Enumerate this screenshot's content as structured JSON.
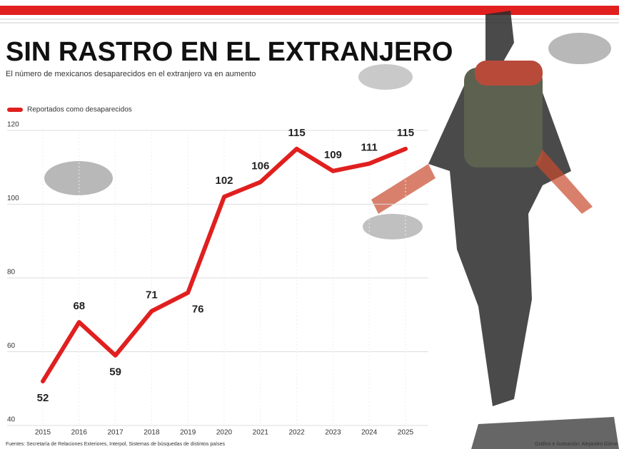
{
  "chart_data": {
    "type": "line",
    "title": "SIN RASTRO EN EL EXTRANJERO",
    "subtitle": "El número de mexicanos desaparecidos en el extranjero va en aumento",
    "categories": [
      "2015",
      "2016",
      "2017",
      "2018",
      "2019",
      "2020",
      "2021",
      "2022",
      "2023",
      "2024",
      "2025"
    ],
    "series": [
      {
        "name": "Reportados como desaparecidos",
        "color": "#e0201f",
        "values": [
          52,
          68,
          59,
          71,
          76,
          102,
          106,
          115,
          109,
          111,
          115
        ]
      }
    ],
    "ylim": [
      40,
      120
    ],
    "yticks": [
      40,
      60,
      80,
      100,
      120
    ],
    "grid": true,
    "source": "Fuentes: Secretaría de Relaciones Exteriores, Interpol, Sistemas de búsquedas de distintos países",
    "credit": "Gráfico e ilustración: Alejandro Góme"
  }
}
